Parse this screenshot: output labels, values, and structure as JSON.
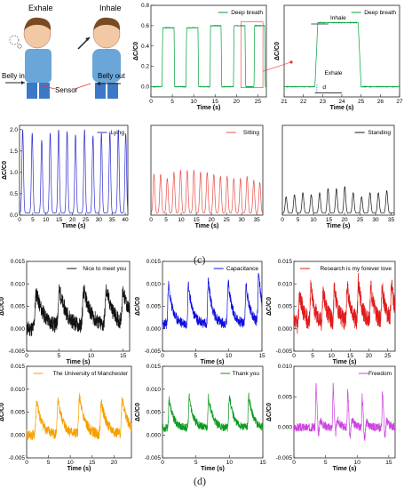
{
  "illustration": {
    "exhale_label": "Exhale",
    "inhale_label": "Inhale",
    "belly_in_label": "Belly in",
    "belly_out_label": "Belly out",
    "sensor_label": "Sensor"
  },
  "panel_labels": {
    "c": "(c)",
    "d": "(d)"
  },
  "charts": [
    {
      "id": "deep-breath",
      "type": "line",
      "legend": "Deep breath",
      "color": "#00a23a",
      "xlabel": "Time (s)",
      "ylabel": "ΔC/C0",
      "xlim": [
        0,
        27
      ],
      "ylim": [
        -0.1,
        0.8
      ],
      "xticks": [
        0,
        5,
        10,
        15,
        20,
        25
      ],
      "yticks": [
        0.0,
        0.2,
        0.4,
        0.6,
        0.8
      ],
      "xtick_labels": [
        "0",
        "5",
        "10",
        "15",
        "20",
        "25"
      ],
      "ytick_labels": [
        "0.0",
        "0.2",
        "0.4",
        "0.6",
        "0.8"
      ],
      "pattern": "square",
      "baseline": 0.0,
      "peaks": [
        0.58,
        0.58,
        0.6,
        0.6,
        0.6
      ],
      "on": [
        2.6,
        8.2,
        13.8,
        19.3,
        24.1
      ],
      "off": [
        5.4,
        11.0,
        16.4,
        22.0,
        26.6
      ]
    },
    {
      "id": "deep-breath-zoom",
      "type": "line",
      "legend": "Deep breath",
      "color": "#00a23a",
      "xlabel": "Time (s)",
      "ylabel": "ΔC/C0",
      "xlim": [
        21,
        27
      ],
      "ylim": [
        -0.1,
        0.8
      ],
      "xticks": [
        21,
        22,
        23,
        24,
        25,
        26,
        27
      ],
      "yticks": [],
      "xtick_labels": [
        "21",
        "22",
        "23",
        "24",
        "25",
        "26",
        "27"
      ],
      "ytick_labels": [],
      "pattern": "square",
      "baseline": 0.0,
      "peaks": [
        0.63
      ],
      "on": [
        22.6
      ],
      "off": [
        24.85
      ],
      "annotations": {
        "inhale": "Inhale",
        "exhale": "Exhale",
        "d": "d"
      }
    },
    {
      "id": "lying",
      "type": "line",
      "legend": "Lying",
      "color": "#2b2bd0",
      "xlabel": "Time (s)",
      "ylabel": "ΔC/C0",
      "xlim": [
        0,
        41
      ],
      "ylim": [
        0,
        2.1
      ],
      "xticks": [
        0,
        5,
        10,
        15,
        20,
        25,
        30,
        35,
        40
      ],
      "yticks": [
        0.0,
        0.5,
        1.0,
        1.5,
        2.0
      ],
      "xtick_labels": [
        "0",
        "5",
        "10",
        "15",
        "20",
        "25",
        "30",
        "35",
        "40"
      ],
      "ytick_labels": [
        "0.0",
        "0.5",
        "1.0",
        "1.5",
        "2.0"
      ],
      "pattern": "peaks",
      "baseline": 0.05,
      "width": 1.1,
      "peak_x": [
        1.2,
        4.8,
        8.4,
        11.6,
        14.8,
        18.0,
        21.2,
        24.6,
        27.8,
        31.0,
        34.2,
        37.4,
        40.2
      ],
      "peaks": [
        2.0,
        1.92,
        1.75,
        1.92,
        2.0,
        1.96,
        1.88,
        2.0,
        1.85,
        1.92,
        1.95,
        2.0,
        1.92
      ]
    },
    {
      "id": "sitting",
      "type": "line",
      "legend": "Sitting",
      "color": "#e8504a",
      "xlabel": "Time (s)",
      "ylabel": "",
      "xlim": [
        0,
        37
      ],
      "ylim": [
        0,
        2.2
      ],
      "xticks": [
        0,
        5,
        10,
        15,
        20,
        25,
        30,
        35
      ],
      "yticks": [],
      "xtick_labels": [
        "0",
        "5",
        "10",
        "15",
        "20",
        "25",
        "30",
        "35"
      ],
      "ytick_labels": [],
      "pattern": "peaks",
      "baseline": 0.05,
      "width": 1.1,
      "peak_x": [
        1.0,
        3.2,
        5.4,
        7.6,
        9.8,
        12.0,
        14.2,
        16.4,
        18.6,
        20.8,
        23.0,
        25.2,
        27.4,
        29.6,
        31.8,
        34.0,
        36.0
      ],
      "peaks": [
        1.0,
        1.0,
        0.9,
        1.05,
        1.1,
        1.1,
        1.1,
        1.05,
        1.05,
        1.0,
        0.95,
        0.95,
        0.9,
        0.9,
        0.95,
        0.85,
        0.8
      ]
    },
    {
      "id": "standing",
      "type": "line",
      "legend": "Standing",
      "color": "#111111",
      "xlabel": "Time (s)",
      "ylabel": "",
      "xlim": [
        0,
        36
      ],
      "ylim": [
        0,
        2.2
      ],
      "xticks": [
        0,
        5,
        10,
        15,
        20,
        25,
        30,
        35
      ],
      "yticks": [],
      "xtick_labels": [
        "0",
        "5",
        "10",
        "15",
        "20",
        "25",
        "30",
        "35"
      ],
      "ytick_labels": [],
      "pattern": "peaks",
      "baseline": 0.05,
      "width": 1.1,
      "peak_x": [
        1.2,
        3.9,
        6.6,
        9.3,
        12.0,
        14.7,
        17.4,
        20.1,
        22.8,
        25.5,
        28.2,
        30.9,
        33.6
      ],
      "peaks": [
        0.45,
        0.5,
        0.55,
        0.5,
        0.55,
        0.65,
        0.65,
        0.7,
        0.55,
        0.45,
        0.55,
        0.55,
        0.6
      ]
    },
    {
      "id": "nice-to-meet-you",
      "type": "line",
      "legend": "Nice to meet you",
      "color": "#111111",
      "xlabel": "Time (s)",
      "ylabel": "ΔC/C0",
      "xlim": [
        0,
        16
      ],
      "ylim": [
        -0.005,
        0.015
      ],
      "xticks": [
        0,
        5,
        10,
        15
      ],
      "yticks": [
        -0.005,
        0.0,
        0.005,
        0.01,
        0.015
      ],
      "xtick_labels": [
        "0",
        "5",
        "10",
        "15"
      ],
      "ytick_labels": [
        "-0.005",
        "0.000",
        "0.005",
        "0.010",
        "0.015"
      ],
      "pattern": "speech",
      "seed": 11,
      "baseline": 0.0,
      "noise": 0.0018,
      "w": 0.9,
      "peak_x": [
        1.5,
        5.1,
        8.9,
        12.4,
        15.0
      ],
      "peaks": [
        0.009,
        0.009,
        0.009,
        0.009,
        0.008
      ]
    },
    {
      "id": "capacitance",
      "type": "line",
      "legend": "Capacitance",
      "color": "#1010e0",
      "xlabel": "Time (s)",
      "ylabel": "ΔC/C0",
      "xlim": [
        0,
        15
      ],
      "ylim": [
        -0.005,
        0.015
      ],
      "xticks": [
        0,
        5,
        10,
        15
      ],
      "yticks": [
        -0.005,
        0.0,
        0.005,
        0.01,
        0.015
      ],
      "xtick_labels": [
        "0",
        "5",
        "10",
        "15"
      ],
      "ytick_labels": [
        "-0.005",
        "0.000",
        "0.005",
        "0.010",
        "0.015"
      ],
      "pattern": "speech",
      "seed": 23,
      "baseline": 0.001,
      "noise": 0.0012,
      "w": 0.45,
      "peak_x": [
        0.9,
        3.9,
        6.9,
        9.9,
        12.6,
        14.5
      ],
      "peaks": [
        0.011,
        0.011,
        0.012,
        0.012,
        0.011,
        0.013
      ]
    },
    {
      "id": "research-is-my-forever-love",
      "type": "line",
      "legend": "Research is my forever love",
      "color": "#e21a1a",
      "xlabel": "Time (s)",
      "ylabel": "ΔC/C0",
      "xlim": [
        0,
        27
      ],
      "ylim": [
        -0.005,
        0.015
      ],
      "xticks": [
        0,
        5,
        10,
        15,
        20,
        25
      ],
      "yticks": [
        -0.005,
        0.0,
        0.005,
        0.01,
        0.015
      ],
      "xtick_labels": [
        "0",
        "5",
        "10",
        "15",
        "20",
        "25"
      ],
      "ytick_labels": [
        "-0.005",
        "0.000",
        "0.005",
        "0.010",
        "0.015"
      ],
      "pattern": "speech",
      "seed": 37,
      "baseline": 0.001,
      "noise": 0.0022,
      "w": 0.8,
      "peak_x": [
        1.5,
        4.5,
        7.8,
        10.8,
        14.2,
        17.2,
        20.5,
        23.5,
        26.0
      ],
      "peaks": [
        0.009,
        0.01,
        0.009,
        0.01,
        0.01,
        0.011,
        0.01,
        0.01,
        0.01
      ]
    },
    {
      "id": "the-university-of-manchester",
      "type": "line",
      "legend": "The University of Manchester",
      "color": "#f5a000",
      "xlabel": "Time (s)",
      "ylabel": "ΔC/C0",
      "xlim": [
        0,
        24
      ],
      "ylim": [
        -0.005,
        0.015
      ],
      "xticks": [
        0,
        5,
        10,
        15,
        20
      ],
      "yticks": [
        -0.005,
        0.0,
        0.005,
        0.01,
        0.015
      ],
      "xtick_labels": [
        "0",
        "5",
        "10",
        "15",
        "20"
      ],
      "ytick_labels": [
        "-0.005",
        "0.000",
        "0.005",
        "0.010",
        "0.015"
      ],
      "pattern": "speech",
      "seed": 41,
      "baseline": 0.0,
      "noise": 0.0012,
      "w": 0.9,
      "peak_x": [
        2.3,
        7.2,
        12.1,
        17.1,
        21.9
      ],
      "peaks": [
        0.008,
        0.008,
        0.009,
        0.008,
        0.009
      ]
    },
    {
      "id": "thank-you",
      "type": "line",
      "legend": "Thank you",
      "color": "#0b9a1e",
      "xlabel": "Time (s)",
      "ylabel": "ΔC/C0",
      "xlim": [
        0,
        15
      ],
      "ylim": [
        -0.005,
        0.015
      ],
      "xticks": [
        0,
        5,
        10,
        15
      ],
      "yticks": [
        -0.005,
        0.0,
        0.005,
        0.01,
        0.015
      ],
      "xtick_labels": [
        "0",
        "5",
        "10",
        "15"
      ],
      "ytick_labels": [
        "-0.005",
        "0.000",
        "0.005",
        "0.010",
        "0.015"
      ],
      "pattern": "speech",
      "seed": 53,
      "baseline": 0.0015,
      "noise": 0.0009,
      "w": 0.45,
      "peak_x": [
        1.0,
        4.0,
        6.9,
        10.0,
        12.9
      ],
      "peaks": [
        0.0085,
        0.009,
        0.009,
        0.0095,
        0.0095
      ]
    },
    {
      "id": "freedom",
      "type": "line",
      "legend": "Freedom",
      "color": "#cc44dd",
      "xlabel": "Time (s)",
      "ylabel": "ΔC/C0",
      "xlim": [
        0,
        16
      ],
      "ylim": [
        -0.005,
        0.01
      ],
      "xticks": [
        0,
        5,
        10,
        15
      ],
      "yticks": [
        -0.005,
        0.0,
        0.005,
        0.01
      ],
      "xtick_labels": [
        "0",
        "5",
        "10",
        "15"
      ],
      "ytick_labels": [
        "-0.005",
        "0.000",
        "0.005",
        "0.010"
      ],
      "pattern": "speech",
      "seed": 67,
      "baseline": 0.0,
      "noise": 0.0007,
      "w": 0.3,
      "neg": true,
      "peak_x": [
        3.5,
        6.2,
        8.5,
        10.8,
        14.0
      ],
      "peaks": [
        0.008,
        0.008,
        0.007,
        0.006,
        0.007
      ]
    }
  ]
}
